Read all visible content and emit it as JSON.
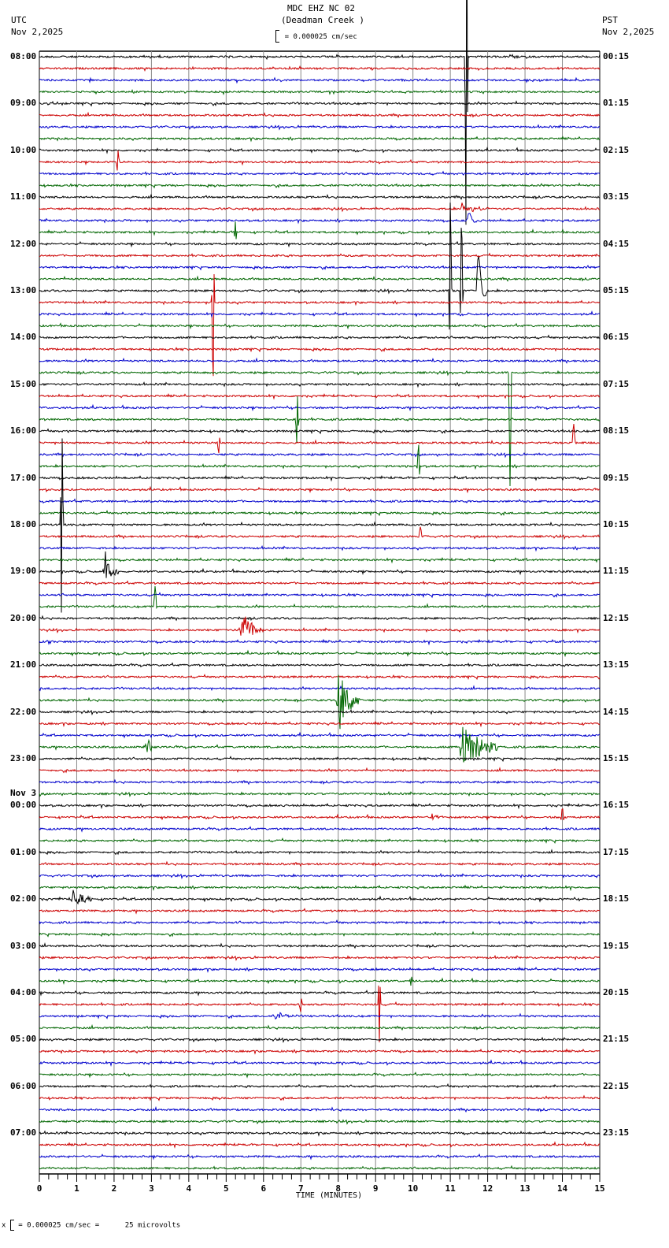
{
  "header": {
    "title": "MDC EHZ NC 02",
    "subtitle": "(Deadman Creek )",
    "scale_text": "= 0.000025 cm/sec",
    "left_tz": "UTC",
    "left_date": "Nov 2,2025",
    "right_tz": "PST",
    "right_date": "Nov 2,2025"
  },
  "footer": {
    "scale_text": "= 0.000025 cm/sec =      25 microvolts",
    "scale_prefix": "x"
  },
  "chart_data": {
    "type": "line",
    "title": "MDC EHZ NC 02 (Deadman Creek)",
    "xlabel": "TIME (MINUTES)",
    "ylabel": "",
    "xlim": [
      0,
      15
    ],
    "x_ticks": [
      "0",
      "1",
      "2",
      "3",
      "4",
      "5",
      "6",
      "7",
      "8",
      "9",
      "10",
      "11",
      "12",
      "13",
      "14",
      "15"
    ],
    "grid": true,
    "trace_colors": [
      "#000000",
      "#cc0000",
      "#0000cc",
      "#006600"
    ],
    "traces_per_hour": 4,
    "trace_count": 96,
    "left_labels": [
      {
        "row": 0,
        "text": "08:00"
      },
      {
        "row": 4,
        "text": "09:00"
      },
      {
        "row": 8,
        "text": "10:00"
      },
      {
        "row": 12,
        "text": "11:00"
      },
      {
        "row": 16,
        "text": "12:00"
      },
      {
        "row": 20,
        "text": "13:00"
      },
      {
        "row": 24,
        "text": "14:00"
      },
      {
        "row": 28,
        "text": "15:00"
      },
      {
        "row": 32,
        "text": "16:00"
      },
      {
        "row": 36,
        "text": "17:00"
      },
      {
        "row": 40,
        "text": "18:00"
      },
      {
        "row": 44,
        "text": "19:00"
      },
      {
        "row": 48,
        "text": "20:00"
      },
      {
        "row": 52,
        "text": "21:00"
      },
      {
        "row": 56,
        "text": "22:00"
      },
      {
        "row": 60,
        "text": "23:00"
      },
      {
        "row": 64,
        "text": "00:00",
        "date": "Nov 3"
      },
      {
        "row": 68,
        "text": "01:00"
      },
      {
        "row": 72,
        "text": "02:00"
      },
      {
        "row": 76,
        "text": "03:00"
      },
      {
        "row": 80,
        "text": "04:00"
      },
      {
        "row": 84,
        "text": "05:00"
      },
      {
        "row": 88,
        "text": "06:00"
      },
      {
        "row": 92,
        "text": "07:00"
      }
    ],
    "right_labels": [
      {
        "row": 0,
        "text": "00:15"
      },
      {
        "row": 4,
        "text": "01:15"
      },
      {
        "row": 8,
        "text": "02:15"
      },
      {
        "row": 12,
        "text": "03:15"
      },
      {
        "row": 16,
        "text": "04:15"
      },
      {
        "row": 20,
        "text": "05:15"
      },
      {
        "row": 24,
        "text": "06:15"
      },
      {
        "row": 28,
        "text": "07:15"
      },
      {
        "row": 32,
        "text": "08:15"
      },
      {
        "row": 36,
        "text": "09:15"
      },
      {
        "row": 40,
        "text": "10:15"
      },
      {
        "row": 44,
        "text": "11:15"
      },
      {
        "row": 48,
        "text": "12:15"
      },
      {
        "row": 52,
        "text": "13:15"
      },
      {
        "row": 56,
        "text": "14:15"
      },
      {
        "row": 60,
        "text": "15:15"
      },
      {
        "row": 64,
        "text": "16:15"
      },
      {
        "row": 68,
        "text": "17:15"
      },
      {
        "row": 72,
        "text": "18:15"
      },
      {
        "row": 76,
        "text": "19:15"
      },
      {
        "row": 80,
        "text": "20:15"
      },
      {
        "row": 84,
        "text": "21:15"
      },
      {
        "row": 88,
        "text": "22:15"
      },
      {
        "row": 92,
        "text": "23:15"
      }
    ],
    "events": [
      {
        "row": 9,
        "minute": 2.1,
        "amp": 18,
        "dur": 0.15,
        "type": "spike"
      },
      {
        "row": 13,
        "minute": 11.3,
        "amp": 8,
        "dur": 0.8,
        "type": "burst"
      },
      {
        "row": 14,
        "minute": 11.45,
        "amp": 20,
        "dur": 0.3,
        "type": "pulse"
      },
      {
        "row": 15,
        "minute": 5.25,
        "amp": 16,
        "dur": 0.2,
        "type": "spike"
      },
      {
        "row": 0,
        "minute": 11.43,
        "amp": 300,
        "dur": 0.05,
        "type": "spike"
      },
      {
        "row": 20,
        "minute": 11.0,
        "amp": 120,
        "dur": 0.1,
        "type": "spike"
      },
      {
        "row": 20,
        "minute": 11.3,
        "amp": 100,
        "dur": 0.1,
        "type": "spike"
      },
      {
        "row": 20,
        "minute": 11.7,
        "amp": 90,
        "dur": 0.3,
        "type": "pulse"
      },
      {
        "row": 21,
        "minute": 4.65,
        "amp": 110,
        "dur": 0.1,
        "type": "spike"
      },
      {
        "row": 27,
        "minute": 12.6,
        "amp": 150,
        "dur": 0.1,
        "type": "spike"
      },
      {
        "row": 31,
        "minute": 6.9,
        "amp": 40,
        "dur": 0.1,
        "type": "spike"
      },
      {
        "row": 33,
        "minute": 4.8,
        "amp": 14,
        "dur": 0.1,
        "type": "spike"
      },
      {
        "row": 35,
        "minute": 10.15,
        "amp": 30,
        "dur": 0.1,
        "type": "spike"
      },
      {
        "row": 33,
        "minute": 14.3,
        "amp": 28,
        "dur": 0.1,
        "type": "spike"
      },
      {
        "row": 40,
        "minute": 0.6,
        "amp": 150,
        "dur": 0.2,
        "type": "spike"
      },
      {
        "row": 44,
        "minute": 1.75,
        "amp": 30,
        "dur": 0.4,
        "type": "burst"
      },
      {
        "row": 41,
        "minute": 10.2,
        "amp": 14,
        "dur": 0.1,
        "type": "spike"
      },
      {
        "row": 47,
        "minute": 3.1,
        "amp": 28,
        "dur": 0.15,
        "type": "spike"
      },
      {
        "row": 49,
        "minute": 5.4,
        "amp": 28,
        "dur": 0.6,
        "type": "burst"
      },
      {
        "row": 50,
        "minute": 0.2,
        "amp": 5,
        "dur": 0.3,
        "type": "burst"
      },
      {
        "row": 55,
        "minute": 8.0,
        "amp": 45,
        "dur": 0.6,
        "type": "burst"
      },
      {
        "row": 59,
        "minute": 2.85,
        "amp": 16,
        "dur": 0.3,
        "type": "burst"
      },
      {
        "row": 59,
        "minute": 11.3,
        "amp": 40,
        "dur": 1.0,
        "type": "burst"
      },
      {
        "row": 65,
        "minute": 10.5,
        "amp": 4,
        "dur": 0.5,
        "type": "burst"
      },
      {
        "row": 65,
        "minute": 14.0,
        "amp": 14,
        "dur": 0.05,
        "type": "spike"
      },
      {
        "row": 72,
        "minute": 0.9,
        "amp": 14,
        "dur": 0.5,
        "type": "burst"
      },
      {
        "row": 79,
        "minute": 9.95,
        "amp": 8,
        "dur": 0.15,
        "type": "spike"
      },
      {
        "row": 81,
        "minute": 7.0,
        "amp": 10,
        "dur": 0.1,
        "type": "spike"
      },
      {
        "row": 81,
        "minute": 9.1,
        "amp": 50,
        "dur": 0.15,
        "type": "spike"
      },
      {
        "row": 82,
        "minute": 6.3,
        "amp": 6,
        "dur": 0.6,
        "type": "burst"
      }
    ]
  }
}
